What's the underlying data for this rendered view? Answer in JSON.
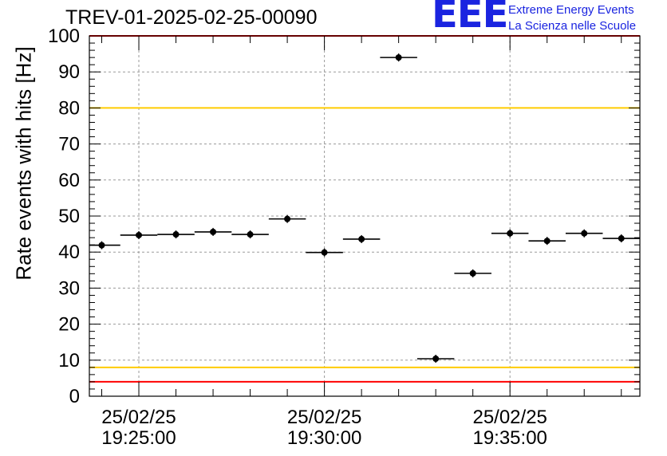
{
  "header": {
    "title": "TREV-01-2025-02-25-00090",
    "logo_text": "EEE",
    "logo_line1": "Extreme Energy Events",
    "logo_line2": "La Scienza nelle Scuole"
  },
  "colors": {
    "logo": "#1a24e0",
    "red_limit": "#ff0000",
    "yellow_limit": "#ffcc00",
    "grid": "#9a9a9a",
    "marker": "#000000"
  },
  "chart_data": {
    "type": "scatter",
    "title": "TREV-01-2025-02-25-00090",
    "xlabel": "",
    "ylabel": "Rate events with hits [Hz]",
    "ylim": [
      0,
      100
    ],
    "xlim": [
      "19:23:40",
      "19:38:30"
    ],
    "grid": true,
    "error_bars": "horizontal",
    "yticks": [
      "0",
      "10",
      "20",
      "30",
      "40",
      "50",
      "60",
      "70",
      "80",
      "90",
      "100"
    ],
    "xticks": [
      {
        "time": "19:25:00",
        "date_label": "25/02/25",
        "time_label": "19:25:00"
      },
      {
        "time": "19:30:00",
        "date_label": "25/02/25",
        "time_label": "19:30:00"
      },
      {
        "time": "19:35:00",
        "date_label": "25/02/25",
        "time_label": "19:35:00"
      }
    ],
    "reference_lines": [
      {
        "y": 4,
        "color": "red"
      },
      {
        "y": 8,
        "color": "yellow"
      },
      {
        "y": 80,
        "color": "yellow"
      },
      {
        "y": 100,
        "color": "red"
      }
    ],
    "points": [
      {
        "x": "19:24:00",
        "y": 41.9
      },
      {
        "x": "19:25:00",
        "y": 44.7
      },
      {
        "x": "19:26:00",
        "y": 44.9
      },
      {
        "x": "19:27:00",
        "y": 45.6
      },
      {
        "x": "19:28:00",
        "y": 44.9
      },
      {
        "x": "19:29:00",
        "y": 49.2
      },
      {
        "x": "19:30:00",
        "y": 39.9
      },
      {
        "x": "19:31:00",
        "y": 43.6
      },
      {
        "x": "19:32:00",
        "y": 94.0
      },
      {
        "x": "19:33:00",
        "y": 10.4
      },
      {
        "x": "19:34:00",
        "y": 34.1
      },
      {
        "x": "19:35:00",
        "y": 45.2
      },
      {
        "x": "19:36:00",
        "y": 43.1
      },
      {
        "x": "19:37:00",
        "y": 45.2
      },
      {
        "x": "19:38:00",
        "y": 43.8
      }
    ]
  }
}
